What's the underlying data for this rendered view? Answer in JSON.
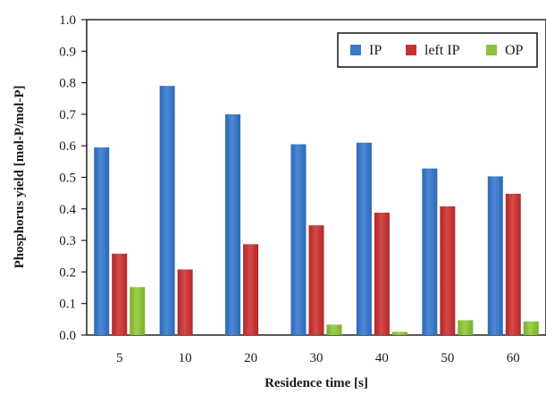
{
  "chart_data": {
    "type": "bar",
    "xlabel": "Residence time [s]",
    "ylabel": "Phosphorus yield [mol-P/mol-P]",
    "categories": [
      "5",
      "10",
      "20",
      "30",
      "40",
      "50",
      "60"
    ],
    "ylim": [
      0,
      1.0
    ],
    "yticks": [
      "0.0",
      "0.1",
      "0.2",
      "0.3",
      "0.4",
      "0.5",
      "0.6",
      "0.7",
      "0.8",
      "0.9",
      "1.0"
    ],
    "grid": false,
    "legend_position": "top-right",
    "series": [
      {
        "name": "IP",
        "color": "#3a78c8",
        "values": [
          0.595,
          0.79,
          0.7,
          0.605,
          0.61,
          0.528,
          0.503
        ]
      },
      {
        "name": "left IP",
        "color": "#c83232",
        "values": [
          0.258,
          0.208,
          0.288,
          0.348,
          0.388,
          0.408,
          0.448
        ]
      },
      {
        "name": "OP",
        "color": "#8cc03c",
        "values": [
          0.152,
          0.0,
          0.0,
          0.033,
          0.01,
          0.047,
          0.043
        ]
      }
    ]
  }
}
